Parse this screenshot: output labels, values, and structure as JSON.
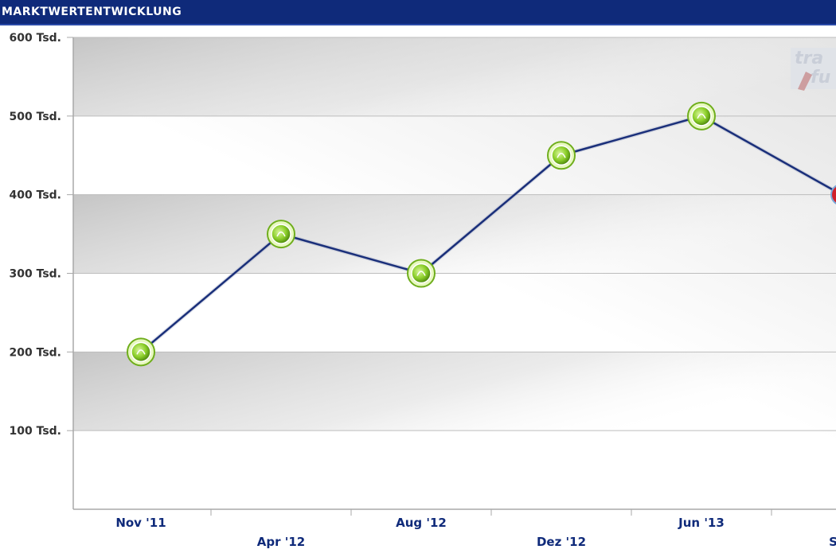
{
  "header": {
    "title": "MARKTWERTENTWICKLUNG"
  },
  "colors": {
    "header_bg": "#0f2a7a",
    "line": "#1a2f7a",
    "marker_green": "#8ccf2a",
    "marker_red": "#d0202a"
  },
  "chart_data": {
    "type": "line",
    "ylim": [
      0,
      600000
    ],
    "yticks": [
      {
        "value": 100000,
        "label": "100 Tsd."
      },
      {
        "value": 200000,
        "label": "200 Tsd."
      },
      {
        "value": 300000,
        "label": "300 Tsd."
      },
      {
        "value": 400000,
        "label": "400 Tsd."
      },
      {
        "value": 500000,
        "label": "500 Tsd."
      },
      {
        "value": 600000,
        "label": "600 Tsd."
      }
    ],
    "categories": [
      "Nov '11",
      "Apr '12",
      "Aug '12",
      "Dez '12",
      "Jun '13",
      "Sep"
    ],
    "values": [
      200000,
      350000,
      300000,
      450000,
      500000,
      400000
    ],
    "grid": true,
    "legend": "none"
  }
}
